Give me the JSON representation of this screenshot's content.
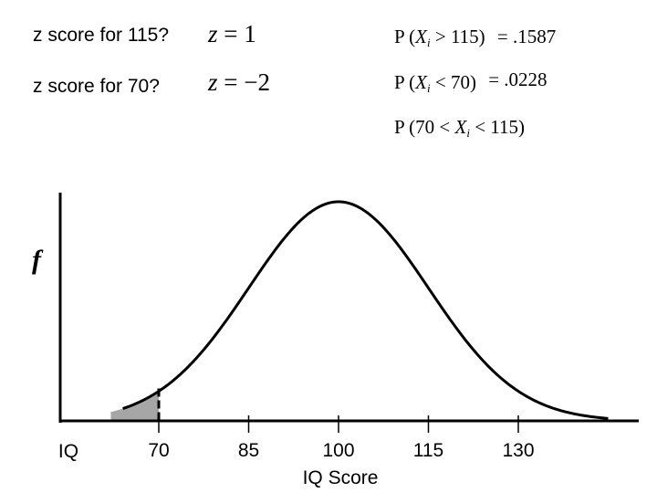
{
  "questions": [
    {
      "label": "z score for 115?",
      "z_var": "z",
      "z_rel": "=",
      "z_val": "1"
    },
    {
      "label": "z score for 70?",
      "z_var": "z",
      "z_rel": "=",
      "z_val": "−2"
    }
  ],
  "probabilities": [
    {
      "open": "P (",
      "var": "X",
      "sub": "i",
      "rel": " > 115)",
      "answer": "= .1587"
    },
    {
      "open": "P (",
      "var": "X",
      "sub": "i",
      "rel": " < 70)",
      "answer": "= .0228"
    },
    {
      "open": "P (70 < ",
      "var": "X",
      "sub": "i",
      "rel": " < 115)",
      "answer": ""
    }
  ],
  "chart_data": {
    "type": "area",
    "distribution": "normal",
    "mean": 100,
    "sd": 15,
    "xlim": [
      62,
      145
    ],
    "xticks": [
      70,
      85,
      100,
      115,
      130
    ],
    "xtick_labels": [
      "70",
      "85",
      "100",
      "115",
      "130"
    ],
    "x_axis_left_label": "IQ",
    "xlabel": "IQ Score",
    "ylabel": "f",
    "shaded_region": {
      "from": 62,
      "to": 70,
      "color": "#a6a6a6"
    },
    "cutoff_line": 70,
    "grid": false,
    "curve_color": "#000000"
  }
}
